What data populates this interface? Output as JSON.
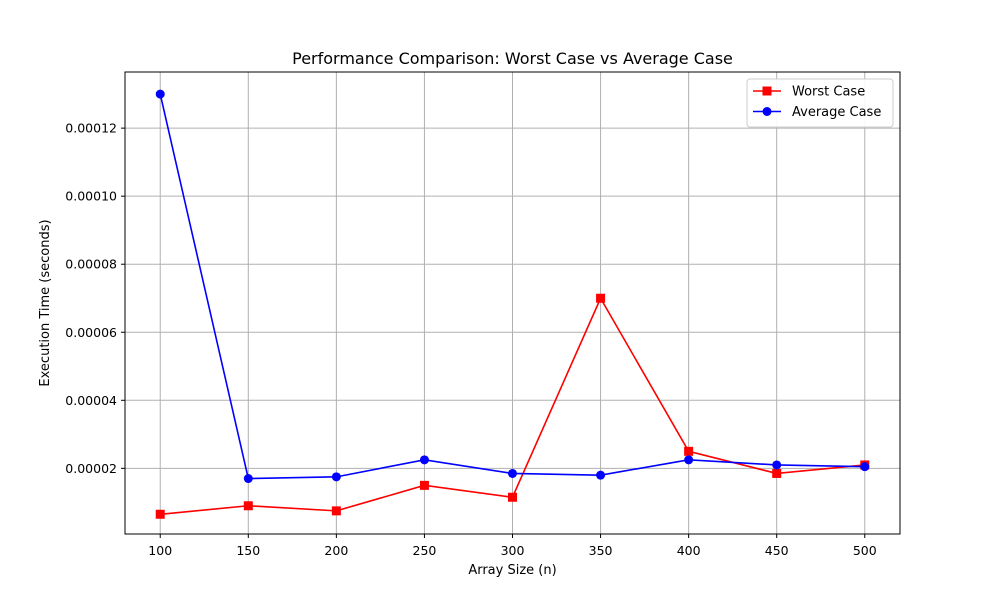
{
  "chart_data": {
    "type": "line",
    "title": "Performance Comparison: Worst Case vs Average Case",
    "xlabel": "Array Size (n)",
    "ylabel": "Execution Time (seconds)",
    "x": [
      100,
      150,
      200,
      250,
      300,
      350,
      400,
      450,
      500
    ],
    "xlim": [
      80,
      520
    ],
    "ylim": [
      7e-07,
      0.0001365
    ],
    "xticks": [
      100,
      150,
      200,
      250,
      300,
      350,
      400,
      450,
      500
    ],
    "xtick_labels": [
      "100",
      "150",
      "200",
      "250",
      "300",
      "350",
      "400",
      "450",
      "500"
    ],
    "yticks": [
      2e-05,
      4e-05,
      6e-05,
      8e-05,
      0.0001,
      0.00012
    ],
    "ytick_labels": [
      "0.00002",
      "0.00004",
      "0.00006",
      "0.00008",
      "0.00010",
      "0.00012"
    ],
    "grid": true,
    "legend_position": "top-right",
    "series": [
      {
        "name": "Worst Case",
        "color": "#ff0000",
        "marker": "square",
        "values": [
          6.5e-06,
          9e-06,
          7.5e-06,
          1.5e-05,
          1.15e-05,
          7e-05,
          2.5e-05,
          1.85e-05,
          2.1e-05
        ]
      },
      {
        "name": "Average Case",
        "color": "#0000ff",
        "marker": "circle",
        "values": [
          0.00013,
          1.7e-05,
          1.75e-05,
          2.25e-05,
          1.85e-05,
          1.8e-05,
          2.25e-05,
          2.1e-05,
          2.05e-05
        ]
      }
    ]
  }
}
